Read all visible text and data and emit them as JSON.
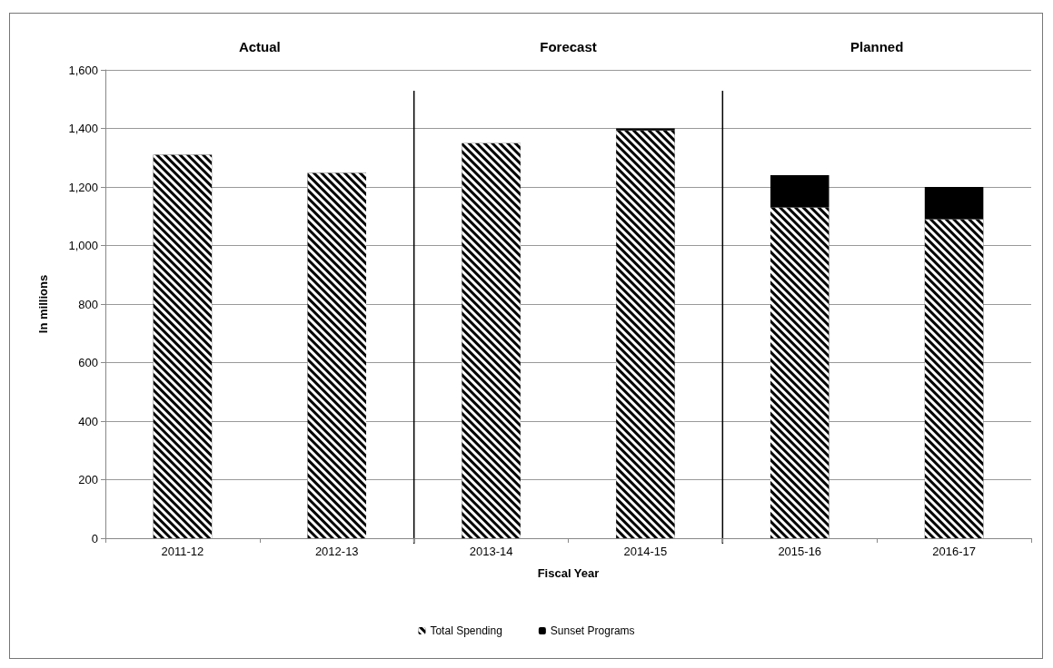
{
  "chart_data": {
    "type": "bar",
    "stacked": true,
    "xlabel": "Fiscal Year",
    "ylabel": "In millions",
    "categories": [
      "2011-12",
      "2012-13",
      "2013-14",
      "2014-15",
      "2015-16",
      "2016-17"
    ],
    "series": [
      {
        "name": "Total Spending",
        "color": "#000000",
        "values": [
          1310,
          1248,
          1350,
          1393,
          1130,
          1090
        ]
      },
      {
        "name": "Sunset Programs",
        "color": "#000000",
        "values": [
          null,
          null,
          null,
          7,
          110,
          110
        ]
      }
    ],
    "ylim": [
      0,
      1600
    ],
    "yticks": [
      0,
      200,
      400,
      600,
      800,
      {
        "value": 1000,
        "label": "1,000"
      },
      {
        "value": 1200,
        "label": "1,200"
      },
      {
        "value": 1400,
        "label": "1,400"
      },
      {
        "value": 1600,
        "label": "1,600"
      }
    ],
    "grid": "y",
    "legend": "bottom",
    "annotations": [
      "Actual",
      "Forecast",
      "Planned"
    ]
  }
}
